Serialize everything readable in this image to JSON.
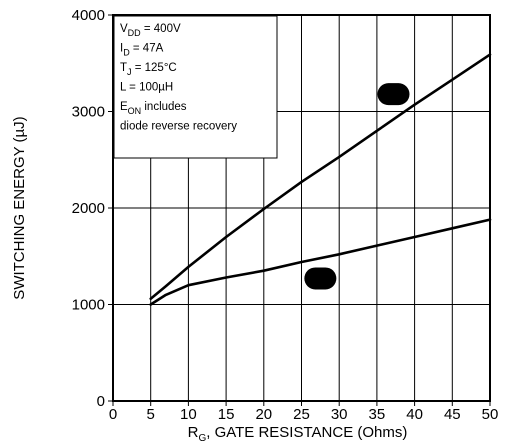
{
  "chart_data": {
    "type": "line",
    "title": "",
    "xlabel": {
      "prefix": "R",
      "sub": "G",
      "rest": ", GATE RESISTANCE (Ohms)"
    },
    "ylabel": "SWITCHING ENERGY (µJ)",
    "xlim": [
      0,
      50
    ],
    "ylim": [
      0,
      4000
    ],
    "x_ticks": [
      0,
      5,
      10,
      15,
      20,
      25,
      30,
      35,
      40,
      45,
      50
    ],
    "y_ticks": [
      0,
      1000,
      2000,
      3000,
      4000
    ],
    "grid": true,
    "series": [
      {
        "label_color": "#000000",
        "x": [
          5,
          7,
          10,
          15,
          20,
          25,
          30,
          35,
          40,
          45,
          50
        ],
        "y": [
          1060,
          1190,
          1390,
          1700,
          1990,
          2270,
          2530,
          2800,
          3070,
          3330,
          3590
        ]
      },
      {
        "label_color": "#000000",
        "x": [
          5,
          7,
          10,
          15,
          20,
          25,
          30,
          35,
          40,
          45,
          50
        ],
        "y": [
          1000,
          1100,
          1200,
          1280,
          1350,
          1440,
          1520,
          1610,
          1700,
          1790,
          1880
        ]
      }
    ],
    "series_markers": [
      {
        "x": 37.2,
        "y": 3180
      },
      {
        "x": 27.5,
        "y": 1270
      }
    ],
    "conditions": [
      {
        "main": "V",
        "sub": "DD",
        "rest": " = 400V"
      },
      {
        "main": "I",
        "sub": "D",
        "rest": " = 47A"
      },
      {
        "main": "T",
        "sub": "J",
        "rest": " = 125°C"
      },
      {
        "main": "L = 100µH",
        "sub": "",
        "rest": ""
      },
      {
        "main": "E",
        "sub": "ON",
        "rest": "  includes"
      },
      {
        "main": "diode  reverse  recovery",
        "sub": "",
        "rest": ""
      }
    ]
  }
}
